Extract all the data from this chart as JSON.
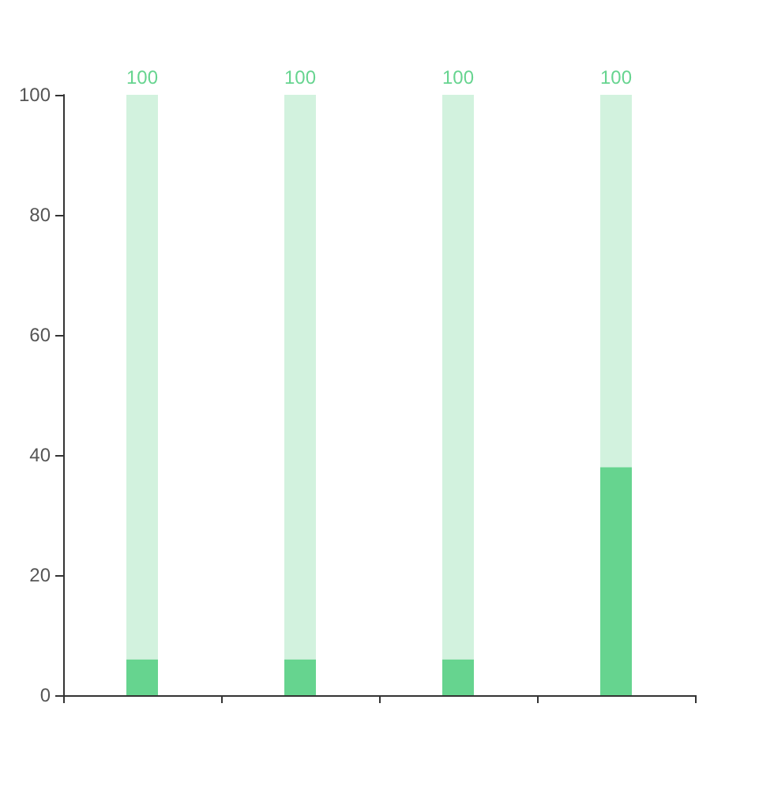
{
  "chart_data": {
    "type": "bar",
    "categories": [
      null,
      null,
      null,
      null
    ],
    "stacked": true,
    "series": [
      {
        "color": "#66d48f",
        "values": [
          6,
          6,
          6,
          38
        ]
      },
      {
        "color": "#d2f2de",
        "values": [
          94,
          94,
          94,
          62
        ]
      }
    ],
    "totals": [
      "100",
      "100",
      "100",
      "100"
    ],
    "ylim": [
      0,
      100
    ],
    "yticks": [
      0,
      20,
      40,
      60,
      80,
      100
    ],
    "grid": false,
    "tick_labels": "y"
  }
}
